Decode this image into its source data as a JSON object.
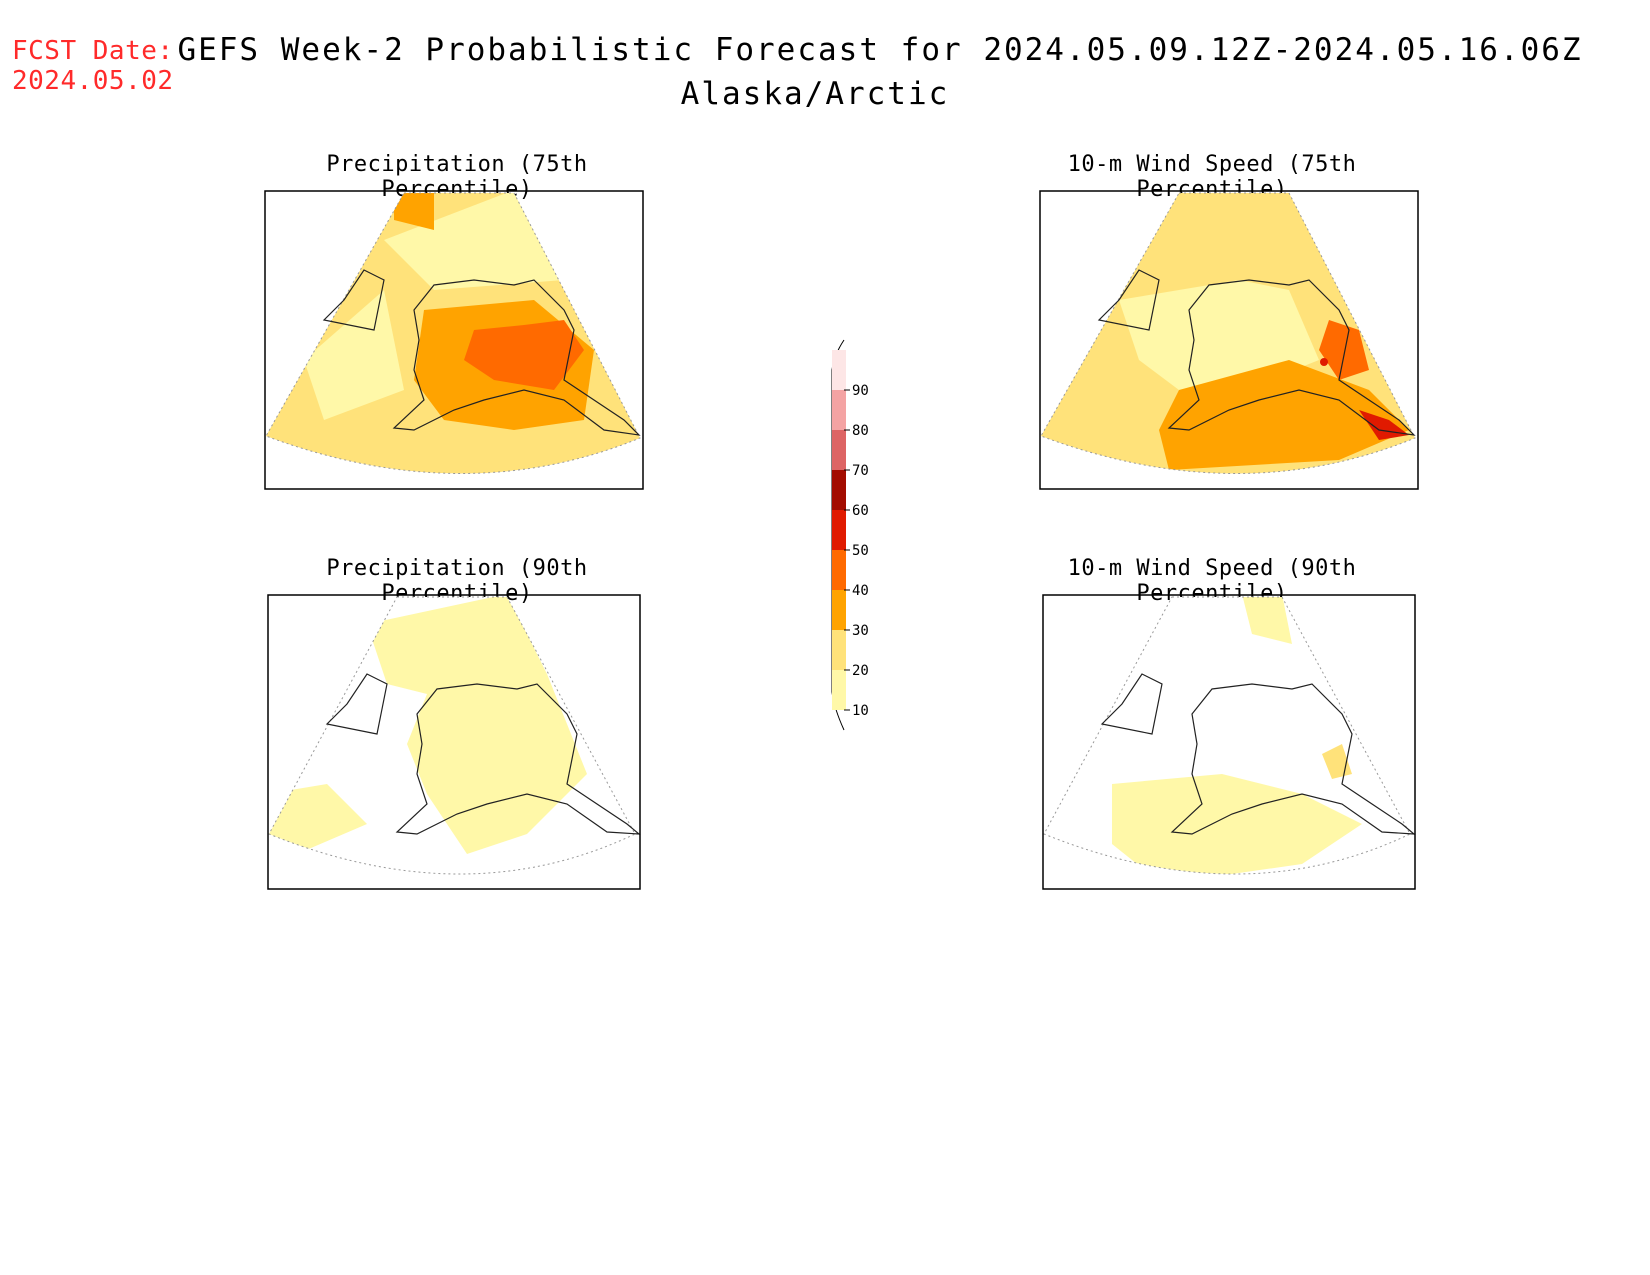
{
  "fcst": {
    "label": "FCST Date:",
    "date": "2024.05.02"
  },
  "header": {
    "title": "GEFS Week-2 Probabilistic Forecast for 2024.05.09.12Z-2024.05.16.06Z",
    "region": "Alaska/Arctic"
  },
  "panels": [
    {
      "id": "precip75",
      "title": "Precipitation (75th Percentile)"
    },
    {
      "id": "wind75",
      "title": "10-m Wind Speed (75th Percentile)"
    },
    {
      "id": "precip90",
      "title": "Precipitation (90th Percentile)"
    },
    {
      "id": "wind90",
      "title": "10-m Wind Speed (90th Percentile)"
    }
  ],
  "colorbar": {
    "ticks": [
      "90",
      "80",
      "70",
      "60",
      "50",
      "40",
      "30",
      "20",
      "10"
    ],
    "colors": [
      "#fde6e6",
      "#f4a3a3",
      "#dd6464",
      "#a30c00",
      "#e01a00",
      "#ff6a00",
      "#ffa300",
      "#ffe27a",
      "#fff8a8"
    ]
  },
  "palette": {
    "level10": "#fff8a8",
    "level20": "#ffe27a",
    "level30": "#ffa300",
    "level40": "#ff6a00",
    "level50": "#e01a00"
  }
}
